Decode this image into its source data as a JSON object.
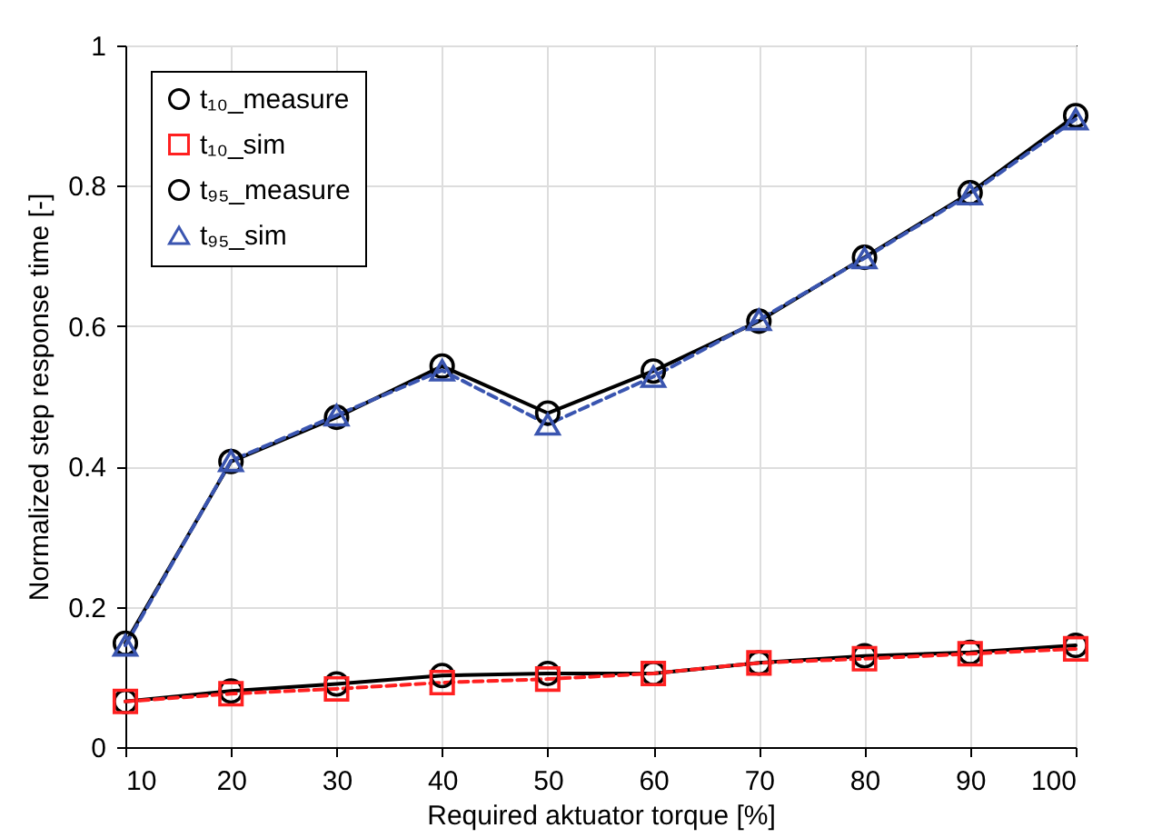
{
  "chart_data": {
    "type": "line",
    "xlabel": "Required aktuator torque [%]",
    "ylabel": "Normalized step response time [-]",
    "x": [
      10,
      20,
      30,
      40,
      50,
      60,
      70,
      80,
      90,
      100
    ],
    "series": [
      {
        "name": "t₁₀_measure",
        "color": "#000000",
        "marker": "circle",
        "line_style": "solid",
        "values": [
          0.065,
          0.08,
          0.09,
          0.102,
          0.105,
          0.105,
          0.12,
          0.13,
          0.135,
          0.145
        ]
      },
      {
        "name": "t₁₀_sim",
        "color": "#ff2020",
        "marker": "square",
        "line_style": "dashed",
        "values": [
          0.065,
          0.076,
          0.083,
          0.092,
          0.097,
          0.105,
          0.12,
          0.126,
          0.133,
          0.14
        ]
      },
      {
        "name": "t₉₅_measure",
        "color": "#000000",
        "marker": "circle",
        "line_style": "solid",
        "values": [
          0.148,
          0.407,
          0.47,
          0.543,
          0.476,
          0.536,
          0.607,
          0.698,
          0.79,
          0.9
        ]
      },
      {
        "name": "t₉₅_sim",
        "color": "#3a55b0",
        "marker": "triangle",
        "line_style": "dashed",
        "values": [
          0.145,
          0.408,
          0.473,
          0.537,
          0.46,
          0.528,
          0.609,
          0.697,
          0.788,
          0.895
        ]
      }
    ],
    "xlim": [
      10,
      100
    ],
    "xticks": [
      10,
      20,
      30,
      40,
      50,
      60,
      70,
      80,
      90,
      100
    ],
    "ylim": [
      0,
      1
    ],
    "yticks": [
      0,
      0.2,
      0.4,
      0.6,
      0.8,
      1
    ],
    "grid": true,
    "legend": "top left"
  }
}
